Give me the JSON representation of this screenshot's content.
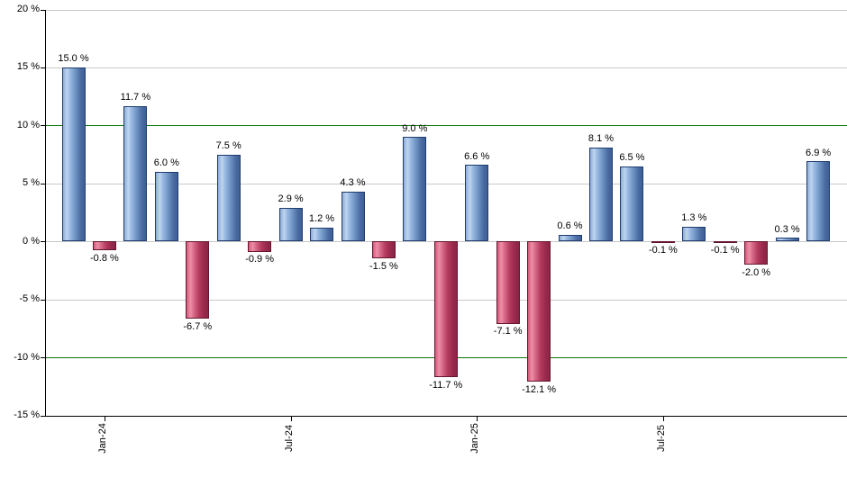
{
  "chart_data": {
    "type": "bar",
    "title": "",
    "unit": "%",
    "values": [
      15.0,
      -0.8,
      11.7,
      6.0,
      -6.7,
      7.5,
      -0.9,
      2.9,
      1.2,
      4.3,
      -1.5,
      9.0,
      -11.7,
      6.6,
      -7.1,
      -12.1,
      0.6,
      8.1,
      6.5,
      -0.1,
      1.3,
      -0.1,
      -2.0,
      0.3,
      6.9
    ],
    "bar_labels": [
      "15.0 %",
      "-0.8 %",
      "11.7 %",
      "6.0 %",
      "-6.7 %",
      "7.5 %",
      "-0.9 %",
      "2.9 %",
      "1.2 %",
      "4.3 %",
      "-1.5 %",
      "9.0 %",
      "-11.7 %",
      "6.6 %",
      "-7.1 %",
      "-12.1 %",
      "0.6 %",
      "8.1 %",
      "6.5 %",
      "-0.1 %",
      "1.3 %",
      "-0.1 %",
      "-2.0 %",
      "0.3 %",
      "6.9 %"
    ],
    "x_ticks": [
      {
        "bar_index": 1,
        "label": "Jan-24"
      },
      {
        "bar_index": 7,
        "label": "Jul-24"
      },
      {
        "bar_index": 13,
        "label": "Jan-25"
      },
      {
        "bar_index": 19,
        "label": "Jul-25"
      }
    ],
    "y_ticks": [
      {
        "value": 20,
        "label": "20 %"
      },
      {
        "value": 15,
        "label": "15 %"
      },
      {
        "value": 10,
        "label": "10 %"
      },
      {
        "value": 5,
        "label": "5 %"
      },
      {
        "value": 0,
        "label": "0 %"
      },
      {
        "value": -5,
        "label": "-5 %"
      },
      {
        "value": -10,
        "label": "-10 %"
      },
      {
        "value": -15,
        "label": "-15 %"
      }
    ],
    "ylim": [
      -15,
      20
    ],
    "xlabel": "",
    "ylabel": "",
    "grid": true,
    "legend_position": "none",
    "reference_lines": [
      {
        "value": 10,
        "color": "#0e760e"
      },
      {
        "value": -10,
        "color": "#0e760e"
      }
    ],
    "colors": {
      "positive_bar": "#7fa3d2",
      "negative_bar": "#c84a6c",
      "grid_line": "#c8c8c8",
      "reference_line": "#0e760e",
      "axis_line": "#000000",
      "label_text": "#000000",
      "background": "#ffffff"
    }
  }
}
